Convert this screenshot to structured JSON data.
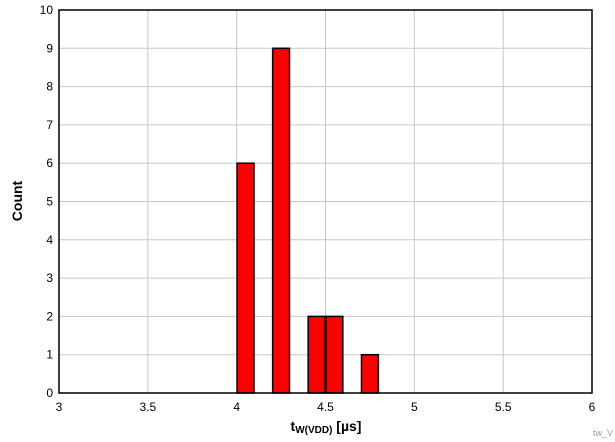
{
  "chart_data": {
    "type": "bar",
    "x": [
      4.05,
      4.25,
      4.45,
      4.55,
      4.75
    ],
    "values": [
      6,
      9,
      2,
      2,
      1
    ],
    "bin_width": 0.1,
    "xlim": [
      3,
      6
    ],
    "ylim": [
      0,
      10
    ],
    "x_ticks": [
      "3",
      "3.5",
      "4",
      "4.5",
      "5",
      "5.5",
      "6"
    ],
    "y_ticks": [
      "0",
      "1",
      "2",
      "3",
      "4",
      "5",
      "6",
      "7",
      "8",
      "9",
      "10"
    ],
    "xlabel_main": "t",
    "xlabel_sub": "W(VDD)",
    "xlabel_unit": " [µs]",
    "ylabel": "Count",
    "grid": true,
    "bar_color": "#ff0000",
    "bar_edge_color": "#000000",
    "watermark": "tw_V"
  }
}
